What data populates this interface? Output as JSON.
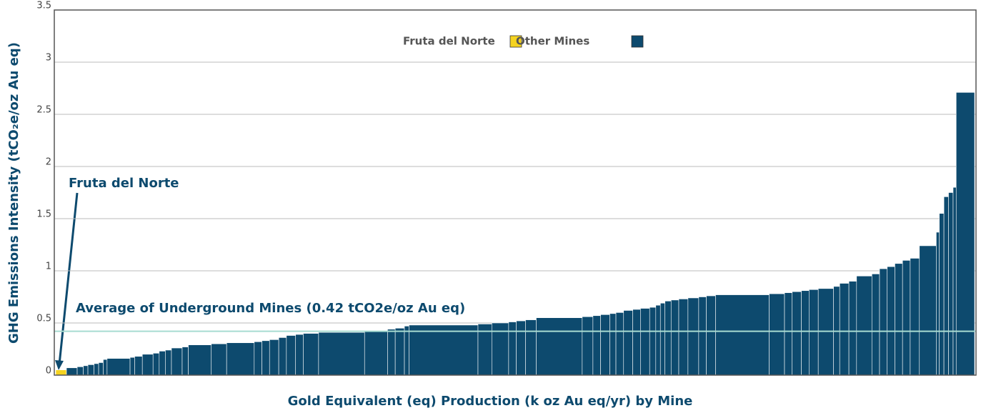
{
  "chart_data": {
    "type": "variable-width-bar",
    "xlabel": "Gold Equivalent (eq) Production (k oz Au eq/yr) by Mine",
    "ylabel": "GHG Emissions Intensity (tCO₂e/oz Au eq)",
    "ylim": [
      0,
      3.5
    ],
    "yticks": [
      0,
      0.5,
      1,
      1.5,
      2,
      2.5,
      3,
      3.5
    ],
    "grid": true,
    "legend": "top",
    "series": [
      {
        "name": "Fruta del Norte",
        "color": "#f5d31f",
        "values": [
          0.05
        ],
        "widths": [
          14
        ]
      },
      {
        "name": "Other Mines",
        "color": "#0d4a6e",
        "values": [
          0.07,
          0.08,
          0.09,
          0.1,
          0.11,
          0.12,
          0.15,
          0.16,
          0.17,
          0.18,
          0.2,
          0.21,
          0.23,
          0.24,
          0.26,
          0.27,
          0.29,
          0.3,
          0.31,
          0.32,
          0.33,
          0.34,
          0.36,
          0.38,
          0.39,
          0.4,
          0.41,
          0.42,
          0.44,
          0.45,
          0.47,
          0.48,
          0.49,
          0.5,
          0.51,
          0.52,
          0.53,
          0.55,
          0.56,
          0.57,
          0.58,
          0.59,
          0.6,
          0.62,
          0.63,
          0.64,
          0.65,
          0.67,
          0.69,
          0.71,
          0.72,
          0.73,
          0.74,
          0.75,
          0.76,
          0.77,
          0.78,
          0.79,
          0.8,
          0.81,
          0.82,
          0.83,
          0.85,
          0.88,
          0.9,
          0.95,
          0.97,
          1.02,
          1.04,
          1.07,
          1.1,
          1.12,
          1.24,
          1.37,
          1.55,
          1.71,
          1.75,
          1.8,
          2.71
        ],
        "widths": [
          14,
          8,
          6,
          8,
          6,
          6,
          5,
          30,
          6,
          10,
          14,
          8,
          8,
          8,
          14,
          8,
          30,
          20,
          36,
          10,
          10,
          12,
          10,
          12,
          10,
          20,
          60,
          30,
          10,
          12,
          6,
          90,
          18,
          22,
          10,
          12,
          14,
          60,
          14,
          10,
          12,
          8,
          10,
          12,
          10,
          12,
          8,
          6,
          6,
          8,
          10,
          12,
          14,
          10,
          12,
          70,
          20,
          10,
          12,
          10,
          12,
          20,
          8,
          12,
          10,
          20,
          10,
          10,
          10,
          10,
          10,
          12,
          22,
          4,
          6,
          6,
          6,
          4,
          24
        ]
      }
    ],
    "reference_line": {
      "value": 0.42,
      "label": "Average of Underground Mines (0.42 tCO2e/oz Au eq)",
      "color": "#a8dcd1"
    },
    "annotation": "Fruta del Norte"
  }
}
